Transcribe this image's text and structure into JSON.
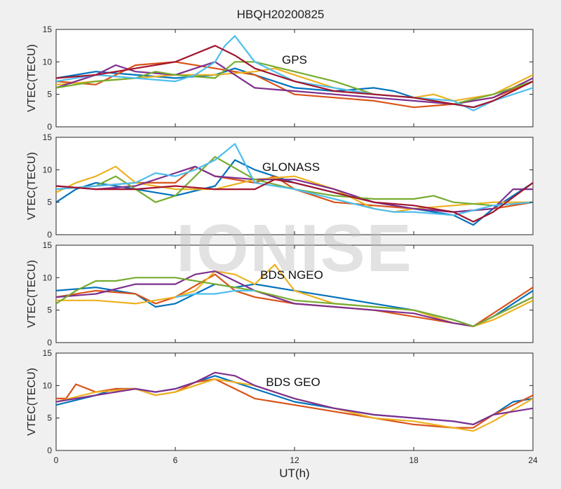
{
  "figure": {
    "title": "HBQH20200825",
    "xlabel": "UT(h)",
    "watermark": "IONISE"
  },
  "chart_data": [
    {
      "type": "line",
      "panel_label": "GPS",
      "ylabel": "VTEC(TECU)",
      "xlim": [
        0,
        24
      ],
      "ylim": [
        0,
        15
      ],
      "xticks": [
        0,
        6,
        12,
        18,
        24
      ],
      "yticks": [
        0,
        5,
        10,
        15
      ],
      "grid": false,
      "series": [
        {
          "color": "#0072BD",
          "x": [
            0,
            2,
            4,
            6,
            8,
            9,
            10,
            12,
            14,
            16,
            17,
            18,
            20,
            21,
            22
          ],
          "y": [
            7.5,
            8.5,
            8,
            7.5,
            8,
            9,
            8,
            6,
            5.5,
            6,
            5.5,
            4.5,
            3.5,
            3,
            4
          ]
        },
        {
          "color": "#D95319",
          "x": [
            0,
            2,
            3,
            4,
            6,
            8,
            10,
            12,
            14,
            16,
            18,
            20,
            22,
            24
          ],
          "y": [
            7,
            6.5,
            8,
            9.5,
            10,
            9,
            8,
            5,
            4.5,
            4,
            3,
            3.5,
            4.5,
            7
          ]
        },
        {
          "color": "#EDB120",
          "x": [
            0,
            2,
            4,
            6,
            8,
            10,
            11,
            12,
            14,
            16,
            18,
            19,
            20,
            22,
            24
          ],
          "y": [
            6.5,
            7,
            7.5,
            8,
            8,
            8.5,
            9,
            8,
            6,
            5,
            4.5,
            5,
            4,
            5,
            8
          ]
        },
        {
          "color": "#7E2F8E",
          "x": [
            0,
            1,
            2,
            3,
            4,
            6,
            7,
            8,
            9,
            10,
            12,
            14,
            16,
            18,
            20,
            22,
            24
          ],
          "y": [
            6,
            7,
            8,
            9.5,
            8.5,
            8,
            9,
            10,
            8,
            6,
            5.5,
            5,
            4.5,
            4,
            3.5,
            4.5,
            7.5
          ]
        },
        {
          "color": "#77AC30",
          "x": [
            0,
            2,
            4,
            5,
            6,
            8,
            9,
            10,
            12,
            14,
            16,
            18,
            20,
            22,
            24
          ],
          "y": [
            6,
            7,
            7.5,
            8.5,
            8,
            7.5,
            10,
            10,
            8.5,
            7,
            5,
            4.5,
            3.5,
            5,
            7
          ]
        },
        {
          "color": "#4DBEEE",
          "x": [
            0,
            2,
            4,
            6,
            7,
            8,
            8.5,
            9,
            10,
            12,
            14,
            16,
            18,
            20,
            21,
            22,
            24
          ],
          "y": [
            7,
            8,
            7.5,
            7,
            8,
            10,
            12.5,
            14,
            10,
            7,
            6,
            5,
            4.5,
            4,
            2.5,
            4,
            6
          ]
        },
        {
          "color": "#A2142F",
          "x": [
            0,
            2,
            4,
            6,
            8,
            9,
            10,
            12,
            14,
            16,
            18,
            19,
            20,
            21,
            22,
            24
          ],
          "y": [
            7.5,
            8,
            9,
            10,
            12.5,
            11,
            9,
            7,
            5.5,
            5,
            4.5,
            4,
            3.5,
            3,
            4,
            7
          ]
        }
      ]
    },
    {
      "type": "line",
      "panel_label": "GLONASS",
      "ylabel": "VTEC(TECU)",
      "xlim": [
        0,
        24
      ],
      "ylim": [
        0,
        15
      ],
      "xticks": [
        0,
        6,
        12,
        18,
        24
      ],
      "yticks": [
        0,
        5,
        10,
        15
      ],
      "grid": false,
      "series": [
        {
          "color": "#0072BD",
          "x": [
            0,
            1,
            2,
            4,
            6,
            8,
            9,
            10,
            12,
            14,
            16,
            18,
            20,
            21,
            22,
            24
          ],
          "y": [
            5,
            7,
            8,
            7,
            6,
            7.5,
            11.5,
            10,
            8,
            6.5,
            5,
            4,
            3,
            1.5,
            4,
            8
          ]
        },
        {
          "color": "#D95319",
          "x": [
            0,
            2,
            4,
            6,
            7,
            8,
            10,
            11,
            12,
            14,
            16,
            18,
            20,
            22,
            24
          ],
          "y": [
            7,
            7.5,
            8,
            8,
            10.5,
            9,
            8,
            9,
            7,
            5,
            4.5,
            4,
            3.5,
            4,
            5
          ]
        },
        {
          "color": "#EDB120",
          "x": [
            0,
            1,
            2,
            3,
            4,
            6,
            8,
            10,
            12,
            14,
            16,
            17,
            18,
            20,
            22,
            24
          ],
          "y": [
            6.5,
            8,
            9,
            10.5,
            8,
            7,
            7,
            8.5,
            9,
            7,
            4,
            3.5,
            4,
            4.5,
            5,
            5
          ]
        },
        {
          "color": "#7E2F8E",
          "x": [
            0,
            2,
            4,
            6,
            7,
            8,
            10,
            12,
            14,
            16,
            18,
            20,
            22,
            23,
            24
          ],
          "y": [
            7.5,
            7,
            7.5,
            9.5,
            10.5,
            9,
            8.5,
            8.5,
            7,
            5,
            4,
            3.5,
            4,
            7,
            7
          ]
        },
        {
          "color": "#77AC30",
          "x": [
            0,
            2,
            3,
            4,
            5,
            6,
            7,
            8,
            10,
            12,
            14,
            16,
            18,
            19,
            20,
            22,
            24
          ],
          "y": [
            7,
            7.5,
            9,
            7,
            5,
            6,
            9,
            12,
            8.5,
            7,
            6,
            5.5,
            5.5,
            6,
            5,
            4.5,
            5
          ]
        },
        {
          "color": "#4DBEEE",
          "x": [
            0,
            2,
            4,
            5,
            6,
            7,
            8,
            9,
            10,
            12,
            14,
            16,
            17,
            18,
            20,
            22,
            24
          ],
          "y": [
            7,
            7.5,
            8,
            9.5,
            9,
            10,
            11.5,
            14,
            8,
            7,
            5.5,
            4,
            3.5,
            3.5,
            3,
            4.5,
            5
          ]
        },
        {
          "color": "#A2142F",
          "x": [
            0,
            2,
            4,
            6,
            8,
            10,
            11,
            12,
            14,
            16,
            18,
            20,
            21,
            22,
            24
          ],
          "y": [
            7.5,
            7,
            7,
            7.5,
            7,
            7,
            8.5,
            8,
            6.5,
            5,
            4.5,
            3.5,
            2,
            3.5,
            8
          ]
        }
      ]
    },
    {
      "type": "line",
      "panel_label": "BDS NGEO",
      "ylabel": "VTEC(TECU)",
      "xlim": [
        0,
        24
      ],
      "ylim": [
        0,
        15
      ],
      "xticks": [
        0,
        6,
        12,
        18,
        24
      ],
      "yticks": [
        0,
        5,
        10,
        15
      ],
      "grid": false,
      "series": [
        {
          "color": "#0072BD",
          "x": [
            0,
            2,
            4,
            5,
            6,
            7,
            8,
            9,
            10,
            12,
            14,
            16,
            18,
            20,
            21,
            22,
            24
          ],
          "y": [
            8,
            8.5,
            7.5,
            5.5,
            6,
            7.5,
            9,
            8.5,
            9,
            8,
            7,
            6,
            5,
            3.5,
            2.5,
            4,
            8
          ]
        },
        {
          "color": "#D95319",
          "x": [
            0,
            2,
            4,
            5,
            6,
            8,
            9,
            10,
            12,
            14,
            16,
            18,
            20,
            21,
            22,
            24
          ],
          "y": [
            7,
            8,
            7.5,
            6,
            7,
            10.5,
            8,
            7,
            6,
            5.5,
            5,
            4,
            3,
            2.5,
            4.5,
            8.5
          ]
        },
        {
          "color": "#EDB120",
          "x": [
            0,
            2,
            4,
            6,
            7,
            8,
            9,
            10,
            11,
            12,
            14,
            16,
            18,
            20,
            21,
            22,
            24
          ],
          "y": [
            6.5,
            6.5,
            6,
            7,
            8,
            11,
            10.5,
            9,
            12,
            8,
            6,
            5.5,
            5,
            3,
            2.5,
            3.5,
            6.5
          ]
        },
        {
          "color": "#7E2F8E",
          "x": [
            0,
            2,
            4,
            6,
            7,
            8,
            10,
            12,
            14,
            16,
            18,
            20,
            21,
            22,
            24
          ],
          "y": [
            7,
            7.5,
            9,
            9,
            10.5,
            11,
            8,
            6,
            5.5,
            5,
            4.5,
            3,
            2.5,
            4,
            7
          ]
        },
        {
          "color": "#77AC30",
          "x": [
            0,
            1,
            2,
            3,
            4,
            6,
            8,
            10,
            12,
            14,
            16,
            18,
            20,
            21,
            22,
            24
          ],
          "y": [
            6,
            8,
            9.5,
            9.5,
            10,
            10,
            9,
            8,
            6.5,
            6,
            5.5,
            5,
            3.5,
            2.5,
            4,
            7
          ]
        },
        {
          "color": "#4DBEEE",
          "x": [
            6,
            7,
            8,
            9,
            10
          ],
          "y": [
            7,
            7.5,
            7.5,
            8,
            8
          ]
        }
      ]
    },
    {
      "type": "line",
      "panel_label": "BDS GEO",
      "ylabel": "VTEC(TECU)",
      "xlim": [
        0,
        24
      ],
      "ylim": [
        0,
        15
      ],
      "xticks": [
        0,
        6,
        12,
        18,
        24
      ],
      "yticks": [
        0,
        5,
        10,
        15
      ],
      "grid": false,
      "series": [
        {
          "color": "#0072BD",
          "x": [
            0,
            2,
            3,
            4,
            5,
            6,
            7,
            8,
            10,
            12,
            14,
            16,
            18,
            20,
            21,
            22,
            23,
            24
          ],
          "y": [
            7,
            8.5,
            9.5,
            9.5,
            9,
            9.5,
            10.5,
            11.5,
            9.5,
            7.5,
            6.5,
            5.5,
            5,
            4.5,
            4,
            5.5,
            7.5,
            8
          ]
        },
        {
          "color": "#D95319",
          "x": [
            0,
            0.5,
            1,
            2,
            3,
            4,
            5,
            6,
            7,
            8,
            9,
            10,
            12,
            14,
            16,
            18,
            20,
            21,
            22,
            24
          ],
          "y": [
            8,
            8,
            10.2,
            9,
            9.5,
            9.5,
            8.5,
            9,
            10.5,
            11,
            9.5,
            8,
            7,
            6,
            5,
            4,
            3.5,
            3.5,
            5.5,
            8.5
          ]
        },
        {
          "color": "#EDB120",
          "x": [
            0,
            2,
            4,
            5,
            6,
            7,
            8,
            9,
            10,
            12,
            14,
            16,
            18,
            20,
            21,
            22,
            24
          ],
          "y": [
            7.5,
            9,
            9.5,
            8.5,
            9,
            10,
            11,
            10.5,
            10,
            8,
            6.5,
            5,
            4.5,
            3.5,
            3,
            4.5,
            8
          ]
        },
        {
          "color": "#7E2F8E",
          "x": [
            0,
            2,
            4,
            5,
            6,
            7,
            8,
            9,
            10,
            12,
            14,
            16,
            18,
            20,
            21,
            22,
            23,
            24
          ],
          "y": [
            7.5,
            8.5,
            9.5,
            9,
            9.5,
            10.5,
            12,
            11.5,
            10,
            8,
            6.5,
            5.5,
            5,
            4.5,
            4,
            5.5,
            6,
            6.5
          ]
        }
      ]
    }
  ]
}
